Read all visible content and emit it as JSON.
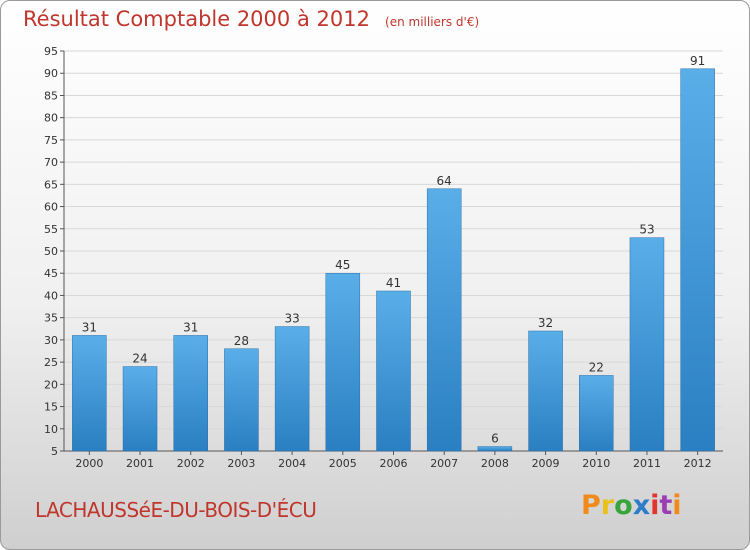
{
  "header": {
    "title": "Résultat Comptable 2000 à 2012",
    "subtitle": "(en milliers d'€)"
  },
  "footer": {
    "commune": "LACHAUSSéE-DU-BOIS-D'ÉCU",
    "brand": "Proxiti"
  },
  "colors": {
    "title": "#c0362c",
    "bar_top": "#5aaee8",
    "bar_bottom": "#2a7fc2",
    "grid": "#d8d8d8"
  },
  "chart_data": {
    "type": "bar",
    "title": "Résultat Comptable 2000 à 2012",
    "subtitle": "(en milliers d'€)",
    "xlabel": "",
    "ylabel": "",
    "categories": [
      "2000",
      "2001",
      "2002",
      "2003",
      "2004",
      "2005",
      "2006",
      "2007",
      "2008",
      "2009",
      "2010",
      "2011",
      "2012"
    ],
    "values": [
      31,
      24,
      31,
      28,
      33,
      45,
      41,
      64,
      6,
      32,
      22,
      53,
      91
    ],
    "ylim": [
      5,
      95
    ],
    "yticks": [
      5,
      10,
      15,
      20,
      25,
      30,
      35,
      40,
      45,
      50,
      55,
      60,
      65,
      70,
      75,
      80,
      85,
      90,
      95
    ],
    "grid": true,
    "data_labels": true
  }
}
